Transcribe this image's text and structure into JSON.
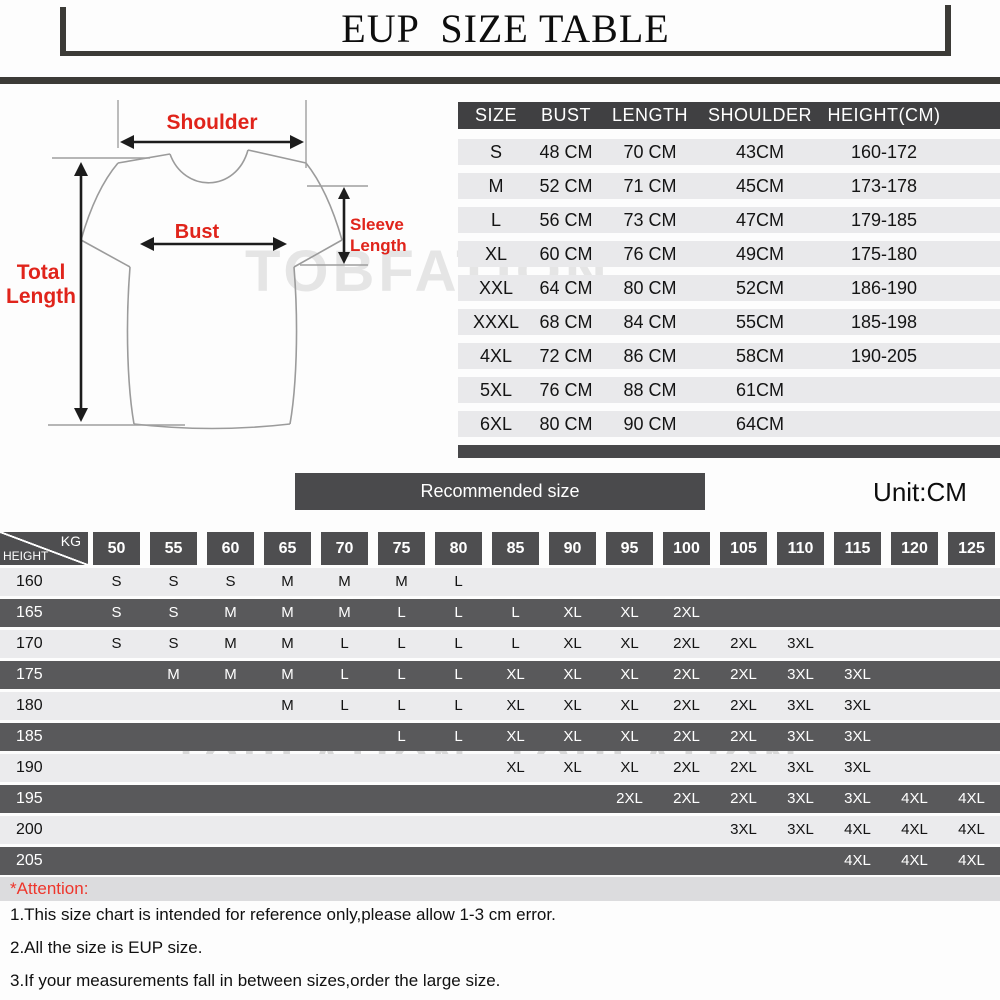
{
  "title": "EUP  SIZE TABLE",
  "unit_label": "Unit:CM",
  "recommended_label": "Recommended size",
  "watermarks": {
    "single": "TOBFATION",
    "double": "TOBFATION  TOBFATION"
  },
  "diagram": {
    "labels": {
      "shoulder": "Shoulder",
      "bust": "Bust",
      "total_length_1": "Total",
      "total_length_2": "Length",
      "sleeve_length_1": "Sleeve",
      "sleeve_length_2": "Length"
    }
  },
  "size_table": {
    "columns": [
      "SIZE",
      "BUST",
      "LENGTH",
      "SHOULDER",
      "HEIGHT(CM)"
    ],
    "rows": [
      [
        "S",
        "48 CM",
        "70 CM",
        "43CM",
        "160-172"
      ],
      [
        "M",
        "52 CM",
        "71 CM",
        "45CM",
        "173-178"
      ],
      [
        "L",
        "56 CM",
        "73 CM",
        "47CM",
        "179-185"
      ],
      [
        "XL",
        "60 CM",
        "76 CM",
        "49CM",
        "175-180"
      ],
      [
        "XXL",
        "64 CM",
        "80 CM",
        "52CM",
        "186-190"
      ],
      [
        "XXXL",
        "68 CM",
        "84 CM",
        "55CM",
        "185-198"
      ],
      [
        "4XL",
        "72 CM",
        "86 CM",
        "58CM",
        "190-205"
      ],
      [
        "5XL",
        "76 CM",
        "88 CM",
        "61CM",
        ""
      ],
      [
        "6XL",
        "80 CM",
        "90 CM",
        "64CM",
        ""
      ]
    ]
  },
  "fit_matrix": {
    "corner": {
      "top_right": "KG",
      "bottom_left": "HEIGHT"
    },
    "weights": [
      "50",
      "55",
      "60",
      "65",
      "70",
      "75",
      "80",
      "85",
      "90",
      "95",
      "100",
      "105",
      "110",
      "115",
      "120",
      "125"
    ],
    "rows": [
      {
        "height": "160",
        "sizes": [
          "S",
          "S",
          "S",
          "M",
          "M",
          "M",
          "L",
          "",
          "",
          "",
          "",
          "",
          "",
          "",
          "",
          ""
        ]
      },
      {
        "height": "165",
        "sizes": [
          "S",
          "S",
          "M",
          "M",
          "M",
          "L",
          "L",
          "L",
          "XL",
          "XL",
          "2XL",
          "",
          "",
          "",
          "",
          ""
        ]
      },
      {
        "height": "170",
        "sizes": [
          "S",
          "S",
          "M",
          "M",
          "L",
          "L",
          "L",
          "L",
          "XL",
          "XL",
          "2XL",
          "2XL",
          "3XL",
          "",
          "",
          ""
        ]
      },
      {
        "height": "175",
        "sizes": [
          "",
          "M",
          "M",
          "M",
          "L",
          "L",
          "L",
          "XL",
          "XL",
          "XL",
          "2XL",
          "2XL",
          "3XL",
          "3XL",
          "",
          ""
        ]
      },
      {
        "height": "180",
        "sizes": [
          "",
          "",
          "",
          "M",
          "L",
          "L",
          "L",
          "XL",
          "XL",
          "XL",
          "2XL",
          "2XL",
          "3XL",
          "3XL",
          "",
          ""
        ]
      },
      {
        "height": "185",
        "sizes": [
          "",
          "",
          "",
          "",
          "",
          "L",
          "L",
          "XL",
          "XL",
          "XL",
          "2XL",
          "2XL",
          "3XL",
          "3XL",
          "",
          ""
        ]
      },
      {
        "height": "190",
        "sizes": [
          "",
          "",
          "",
          "",
          "",
          "",
          "",
          "XL",
          "XL",
          "XL",
          "2XL",
          "2XL",
          "3XL",
          "3XL",
          "",
          ""
        ]
      },
      {
        "height": "195",
        "sizes": [
          "",
          "",
          "",
          "",
          "",
          "",
          "",
          "",
          "",
          "2XL",
          "2XL",
          "2XL",
          "3XL",
          "3XL",
          "4XL",
          "4XL"
        ]
      },
      {
        "height": "200",
        "sizes": [
          "",
          "",
          "",
          "",
          "",
          "",
          "",
          "",
          "",
          "",
          "",
          "3XL",
          "3XL",
          "4XL",
          "4XL",
          "4XL"
        ]
      },
      {
        "height": "205",
        "sizes": [
          "",
          "",
          "",
          "",
          "",
          "",
          "",
          "",
          "",
          "",
          "",
          "",
          "",
          "4XL",
          "4XL",
          "4XL"
        ]
      }
    ]
  },
  "attention": {
    "label": "*Attention:",
    "notes": [
      "1.This size chart is intended for reference only,please allow 1-3 cm error.",
      "2.All the size is EUP size.",
      "3.If your measurements fall in between sizes,order the large size."
    ]
  },
  "colors": {
    "accent_red": "#e0241b",
    "attention_red": "#ee352b",
    "dark_bar": "#3c3b37",
    "table_header": "#404042",
    "table_row": "#e9e9eb",
    "matrix_dark_row": "#59595b",
    "matrix_light_row": "#ebebed",
    "attention_bar": "#dcdcde"
  }
}
